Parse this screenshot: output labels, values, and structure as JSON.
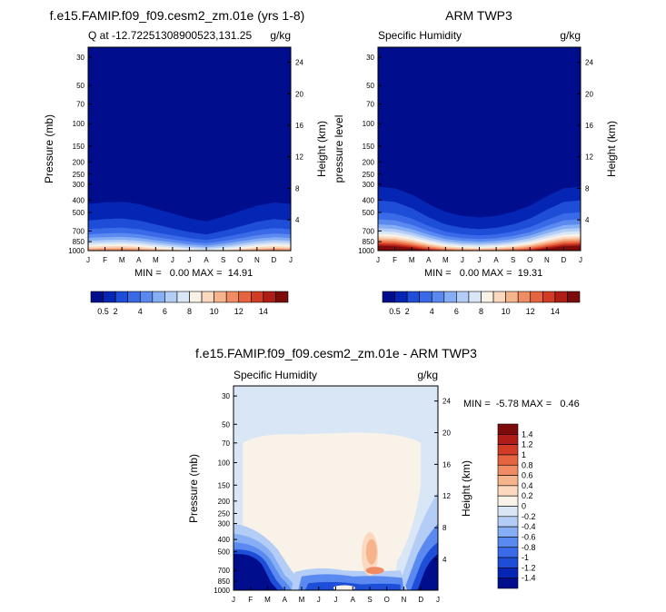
{
  "chart_data": [
    {
      "type": "contour",
      "title": "f.e15.FAMIP.f09_f09.cesm2_zm.01e (yrs 1-8)",
      "left_label": "Q at -12.72251308900523,131.25",
      "right_label": "g/kg",
      "xlabel": "",
      "ylabel": "Pressure (mb)",
      "y2label": "Height (km)",
      "x_ticks": [
        "J",
        "F",
        "M",
        "A",
        "M",
        "J",
        "J",
        "A",
        "S",
        "O",
        "N",
        "D",
        "J"
      ],
      "y_ticks": [
        30,
        50,
        70,
        100,
        150,
        200,
        250,
        300,
        400,
        500,
        700,
        850,
        1000
      ],
      "y_range": [
        25,
        1000
      ],
      "height_ticks": [
        4,
        8,
        12,
        16,
        20,
        24
      ],
      "stats_text": "MIN =   0.00 MAX =  14.91",
      "colorbar": {
        "levels": [
          0.5,
          1,
          2,
          3,
          4,
          5,
          6,
          7,
          8,
          9,
          10,
          11,
          12,
          13,
          14
        ],
        "tick_labels": [
          "0.5",
          "2",
          "4",
          "6",
          "8",
          "10",
          "12",
          "14"
        ],
        "colors": [
          "#000e8e",
          "#0526b4",
          "#1e4ed8",
          "#3a6ae8",
          "#5a8af0",
          "#86aef4",
          "#b4cdf6",
          "#d9e6f6",
          "#f8f2e8",
          "#fcd8bf",
          "#f6b48c",
          "#f08c64",
          "#e66440",
          "#d03c26",
          "#b01c16",
          "#7c0c0c"
        ]
      },
      "surface_max": 14.91,
      "moist_top_km": [
        6.0,
        6.2,
        6.3,
        6.0,
        5.4,
        4.8,
        4.2,
        3.8,
        4.4,
        5.1,
        5.8,
        6.2,
        6.0
      ]
    },
    {
      "type": "contour",
      "title": "ARM TWP3",
      "left_label": "Specific Humidity",
      "right_label": "g/kg",
      "xlabel": "",
      "ylabel": "pressure level",
      "y2label": "Height (km)",
      "x_ticks": [
        "J",
        "F",
        "M",
        "A",
        "M",
        "J",
        "J",
        "A",
        "S",
        "O",
        "N",
        "D",
        "J"
      ],
      "y_ticks": [
        30,
        50,
        70,
        100,
        150,
        200,
        250,
        300,
        400,
        500,
        700,
        850,
        1000
      ],
      "y_range": [
        25,
        1000
      ],
      "height_ticks": [
        4,
        8,
        12,
        16,
        20,
        24
      ],
      "stats_text": "MIN =   0.00 MAX =  19.31",
      "colorbar": {
        "levels": [
          0.5,
          1,
          2,
          3,
          4,
          5,
          6,
          7,
          8,
          9,
          10,
          11,
          12,
          13,
          14
        ],
        "tick_labels": [
          "0.5",
          "2",
          "4",
          "6",
          "8",
          "10",
          "12",
          "14"
        ],
        "colors": [
          "#000e8e",
          "#0526b4",
          "#1e4ed8",
          "#3a6ae8",
          "#5a8af0",
          "#86aef4",
          "#b4cdf6",
          "#d9e6f6",
          "#f8f2e8",
          "#fcd8bf",
          "#f6b48c",
          "#f08c64",
          "#e66440",
          "#d03c26",
          "#b01c16",
          "#7c0c0c"
        ]
      },
      "surface_max": 19.31,
      "moist_top_km": [
        8.2,
        8.0,
        7.2,
        6.0,
        5.0,
        4.5,
        4.3,
        4.5,
        5.0,
        5.8,
        7.0,
        8.0,
        8.2
      ]
    },
    {
      "type": "contour",
      "title": "f.e15.FAMIP.f09_f09.cesm2_zm.01e - ARM TWP3",
      "left_label": "Specific Humidity",
      "right_label": "g/kg",
      "xlabel": "",
      "ylabel": "Pressure (mb)",
      "y2label": "Height (km)",
      "x_ticks": [
        "J",
        "F",
        "M",
        "A",
        "M",
        "J",
        "J",
        "A",
        "S",
        "O",
        "N",
        "D",
        "J"
      ],
      "y_ticks": [
        30,
        50,
        70,
        100,
        150,
        200,
        250,
        300,
        400,
        500,
        700,
        850,
        1000
      ],
      "y_range": [
        25,
        1000
      ],
      "height_ticks": [
        4,
        8,
        12,
        16,
        20,
        24
      ],
      "stats_text": "MIN =  -5.78 MAX =   0.46",
      "colorbar": {
        "levels": [
          -1.4,
          -1.2,
          -1,
          -0.8,
          -0.6,
          -0.4,
          -0.2,
          0,
          0.2,
          0.4,
          0.6,
          0.8,
          1,
          1.2,
          1.4
        ],
        "tick_labels": [
          "-1.4",
          "-1.2",
          "-1",
          "-0.8",
          "-0.6",
          "-0.4",
          "-0.2",
          "0",
          "0.2",
          "0.4",
          "0.6",
          "0.8",
          "1",
          "1.2",
          "1.4"
        ],
        "colors": [
          "#000e8e",
          "#0526b4",
          "#1e4ed8",
          "#3a6ae8",
          "#5a8af0",
          "#86aef4",
          "#b4cdf6",
          "#d9e6f6",
          "#f8f2e8",
          "#fcd8bf",
          "#f6b48c",
          "#f08c64",
          "#e66440",
          "#d03c26",
          "#b01c16",
          "#7c0c0c"
        ]
      }
    }
  ]
}
